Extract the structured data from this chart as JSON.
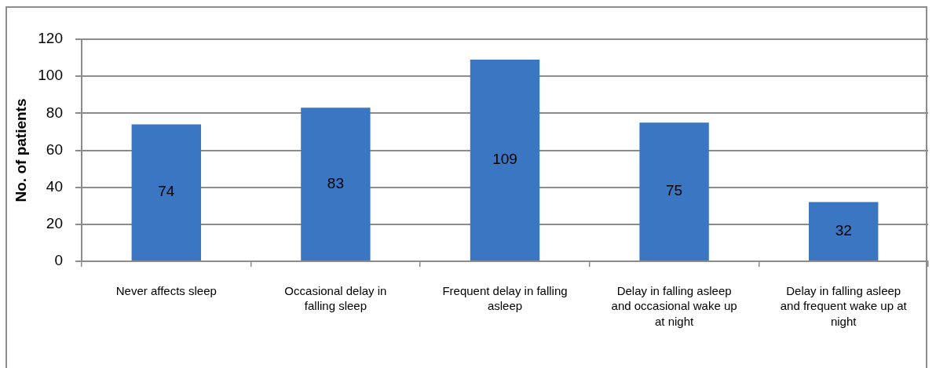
{
  "chart_data": {
    "type": "bar",
    "ylabel": "No. of patients",
    "categories": [
      "Never affects sleep",
      "Occasional delay in falling sleep",
      "Frequent delay in falling asleep",
      "Delay in falling asleep and occasional wake up at night",
      "Delay in falling asleep and frequent wake up at night"
    ],
    "values": [
      74,
      83,
      109,
      75,
      32
    ],
    "color": "#3b76c3",
    "ylim": [
      0,
      120
    ],
    "yticks": [
      0,
      20,
      40,
      60,
      80,
      100,
      120
    ],
    "grid": "y",
    "data_labels": true
  }
}
